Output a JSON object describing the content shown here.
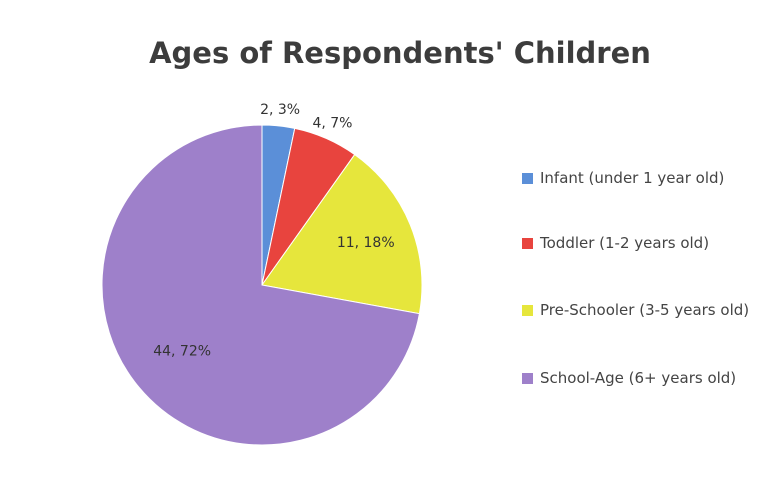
{
  "chart_data": {
    "type": "pie",
    "title": "Ages of Respondents' Children",
    "categories": [
      "Infant (under 1 year old)",
      "Toddler (1-2 years old)",
      "Pre-Schooler (3-5 years old)",
      "School-Age (6+ years old)"
    ],
    "values": [
      2,
      4,
      11,
      44
    ],
    "value_labels": [
      "2, 3%",
      "4, 7%",
      "11, 18%",
      "44, 72%"
    ],
    "colors": [
      "#5b8fd8",
      "#e8443e",
      "#e6e63c",
      "#9e80ca"
    ],
    "legend": "right"
  }
}
